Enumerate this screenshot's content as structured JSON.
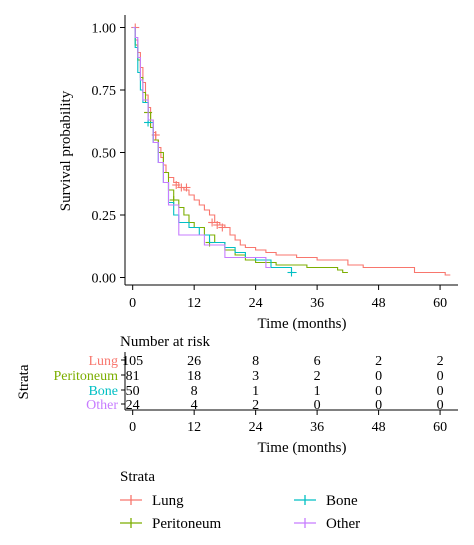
{
  "colors": {
    "Lung": "#f8766d",
    "Peritoneum": "#7cae00",
    "Bone": "#00bfc4",
    "Other": "#c77cff",
    "axis": "#000000"
  },
  "chart_data": [
    {
      "type": "line",
      "subtype": "kaplan-meier",
      "title": "",
      "xlabel": "Time (months)",
      "ylabel": "Survival probability",
      "xlim": [
        -1.5,
        63.5
      ],
      "ylim": [
        -0.03,
        1.05
      ],
      "xticks": [
        0,
        12,
        24,
        36,
        48,
        60
      ],
      "yticks": [
        0.0,
        0.25,
        0.5,
        0.75,
        1.0
      ],
      "ytick_labels": [
        "0.00",
        "0.25",
        "0.50",
        "0.75",
        "1.00"
      ],
      "grid": false,
      "series": [
        {
          "name": "Lung",
          "steps": [
            [
              0,
              1.0
            ],
            [
              0.5,
              0.95
            ],
            [
              1,
              0.9
            ],
            [
              1.5,
              0.84
            ],
            [
              2,
              0.78
            ],
            [
              2.5,
              0.73
            ],
            [
              3,
              0.68
            ],
            [
              3.5,
              0.63
            ],
            [
              4,
              0.58
            ],
            [
              4.5,
              0.55
            ],
            [
              5,
              0.52
            ],
            [
              5.5,
              0.48
            ],
            [
              6,
              0.45
            ],
            [
              6.5,
              0.42
            ],
            [
              7,
              0.4
            ],
            [
              8,
              0.38
            ],
            [
              9,
              0.36
            ],
            [
              10,
              0.35
            ],
            [
              11,
              0.33
            ],
            [
              12,
              0.31
            ],
            [
              13,
              0.29
            ],
            [
              14,
              0.27
            ],
            [
              15,
              0.25
            ],
            [
              16,
              0.22
            ],
            [
              17,
              0.21
            ],
            [
              18,
              0.2
            ],
            [
              19,
              0.17
            ],
            [
              20,
              0.15
            ],
            [
              21,
              0.13
            ],
            [
              22,
              0.12
            ],
            [
              24,
              0.11
            ],
            [
              26,
              0.1
            ],
            [
              28,
              0.09
            ],
            [
              32,
              0.08
            ],
            [
              36,
              0.07
            ],
            [
              42,
              0.05
            ],
            [
              45,
              0.04
            ],
            [
              50,
              0.04
            ],
            [
              55,
              0.02
            ],
            [
              61,
              0.01
            ]
          ],
          "end": 62,
          "censored": [
            [
              0.5,
              1.0
            ],
            [
              3,
              0.66
            ],
            [
              4.5,
              0.57
            ],
            [
              8.5,
              0.37
            ],
            [
              9.5,
              0.36
            ],
            [
              10.5,
              0.36
            ],
            [
              15.5,
              0.22
            ],
            [
              16.5,
              0.21
            ],
            [
              17.5,
              0.2
            ]
          ]
        },
        {
          "name": "Peritoneum",
          "steps": [
            [
              0,
              1.0
            ],
            [
              0.5,
              0.93
            ],
            [
              1,
              0.87
            ],
            [
              1.5,
              0.8
            ],
            [
              2,
              0.74
            ],
            [
              2.5,
              0.7
            ],
            [
              3,
              0.66
            ],
            [
              3.5,
              0.6
            ],
            [
              4,
              0.55
            ],
            [
              5,
              0.5
            ],
            [
              6,
              0.42
            ],
            [
              7,
              0.35
            ],
            [
              8,
              0.31
            ],
            [
              9,
              0.28
            ],
            [
              10,
              0.25
            ],
            [
              11,
              0.22
            ],
            [
              12,
              0.2
            ],
            [
              14,
              0.17
            ],
            [
              16,
              0.14
            ],
            [
              18,
              0.11
            ],
            [
              20,
              0.09
            ],
            [
              22,
              0.07
            ],
            [
              24,
              0.06
            ],
            [
              28,
              0.05
            ],
            [
              34,
              0.04
            ],
            [
              40,
              0.03
            ],
            [
              41,
              0.02
            ]
          ],
          "end": 42,
          "censored": [
            [
              3,
              0.66
            ],
            [
              8,
              0.31
            ],
            [
              15,
              0.14
            ]
          ]
        },
        {
          "name": "Bone",
          "steps": [
            [
              0,
              1.0
            ],
            [
              0.5,
              0.92
            ],
            [
              1,
              0.82
            ],
            [
              1.5,
              0.75
            ],
            [
              2,
              0.7
            ],
            [
              3,
              0.62
            ],
            [
              4,
              0.54
            ],
            [
              5,
              0.46
            ],
            [
              6,
              0.38
            ],
            [
              7,
              0.3
            ],
            [
              8,
              0.25
            ],
            [
              9,
              0.22
            ],
            [
              11,
              0.2
            ],
            [
              13,
              0.17
            ],
            [
              15,
              0.14
            ],
            [
              18,
              0.12
            ],
            [
              20,
              0.1
            ],
            [
              22,
              0.08
            ],
            [
              24,
              0.07
            ],
            [
              27,
              0.04
            ],
            [
              31,
              0.02
            ]
          ],
          "end": 32,
          "censored": [
            [
              3,
              0.62
            ],
            [
              31,
              0.02
            ]
          ]
        },
        {
          "name": "Other",
          "steps": [
            [
              0,
              1.0
            ],
            [
              0.5,
              0.96
            ],
            [
              1,
              0.88
            ],
            [
              1.5,
              0.79
            ],
            [
              2,
              0.71
            ],
            [
              3,
              0.63
            ],
            [
              4,
              0.54
            ],
            [
              5,
              0.46
            ],
            [
              6,
              0.38
            ],
            [
              7,
              0.29
            ],
            [
              9,
              0.17
            ],
            [
              14,
              0.13
            ],
            [
              18,
              0.08
            ],
            [
              26,
              0.04
            ]
          ],
          "end": 27,
          "censored": []
        }
      ]
    },
    {
      "type": "table",
      "title": "Number at risk",
      "ylabel": "Strata",
      "xlabel": "Time (months)",
      "xticks": [
        0,
        12,
        24,
        36,
        48,
        60
      ],
      "rows": [
        {
          "name": "Lung",
          "values": [
            105,
            26,
            8,
            6,
            2,
            2
          ]
        },
        {
          "name": "Peritoneum",
          "values": [
            81,
            18,
            3,
            2,
            0,
            0
          ]
        },
        {
          "name": "Bone",
          "values": [
            50,
            8,
            1,
            1,
            0,
            0
          ]
        },
        {
          "name": "Other",
          "values": [
            24,
            4,
            2,
            0,
            0,
            0
          ]
        }
      ]
    }
  ],
  "legend": {
    "title": "Strata",
    "items": [
      "Lung",
      "Peritoneum",
      "Bone",
      "Other"
    ]
  }
}
